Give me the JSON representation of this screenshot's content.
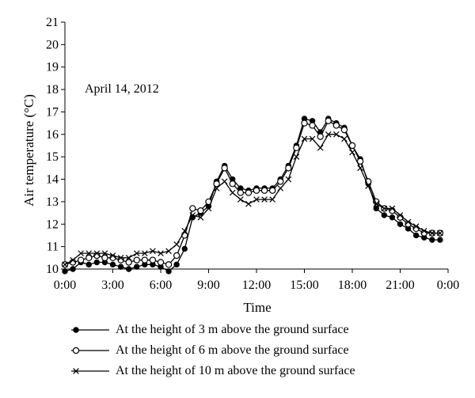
{
  "chart_data": {
    "type": "line",
    "annotation": "April 14, 2012",
    "xlabel": "Time",
    "ylabel": "Air temperature (°C)",
    "x_ticks": [
      "0:00",
      "3:00",
      "6:00",
      "9:00",
      "12:00",
      "15:00",
      "18:00",
      "21:00",
      "0:00"
    ],
    "y_ticks": [
      10,
      11,
      12,
      13,
      14,
      15,
      16,
      17,
      18,
      19,
      20,
      21
    ],
    "xlim_hours": [
      0,
      24
    ],
    "ylim": [
      10,
      21
    ],
    "grid": false,
    "legend_position": "bottom",
    "x_hours": [
      0,
      0.5,
      1,
      1.5,
      2,
      2.5,
      3,
      3.5,
      4,
      4.5,
      5,
      5.5,
      6,
      6.5,
      7,
      7.5,
      8,
      8.5,
      9,
      9.5,
      10,
      10.5,
      11,
      11.5,
      12,
      12.5,
      13,
      13.5,
      14,
      14.5,
      15,
      15.5,
      16,
      16.5,
      17,
      17.5,
      18,
      18.5,
      19,
      19.5,
      20,
      20.5,
      21,
      21.5,
      22,
      22.5,
      23,
      23.5
    ],
    "series": [
      {
        "name": "At the height of 3 m above the ground surface",
        "marker": "filled-circle",
        "values": [
          9.9,
          10.0,
          10.3,
          10.2,
          10.3,
          10.3,
          10.2,
          10.1,
          10.0,
          10.1,
          10.2,
          10.2,
          10.1,
          9.9,
          10.2,
          10.9,
          12.3,
          12.5,
          12.8,
          13.9,
          14.6,
          14.0,
          13.6,
          13.5,
          13.6,
          13.6,
          13.6,
          14.0,
          14.6,
          15.5,
          16.7,
          16.6,
          16.1,
          16.7,
          16.5,
          16.3,
          15.5,
          14.9,
          13.8,
          12.7,
          12.4,
          12.3,
          12.0,
          11.8,
          11.5,
          11.4,
          11.3,
          11.3
        ]
      },
      {
        "name": "At the height of 6 m above the ground surface",
        "marker": "open-circle",
        "values": [
          10.2,
          10.3,
          10.4,
          10.5,
          10.6,
          10.5,
          10.5,
          10.4,
          10.3,
          10.4,
          10.4,
          10.4,
          10.3,
          10.2,
          10.6,
          11.5,
          12.7,
          12.6,
          13.0,
          13.8,
          14.5,
          13.8,
          13.4,
          13.4,
          13.5,
          13.5,
          13.5,
          13.9,
          14.5,
          15.4,
          16.5,
          16.4,
          15.9,
          16.6,
          16.4,
          16.2,
          15.5,
          14.8,
          13.9,
          13.0,
          12.7,
          12.6,
          12.3,
          12.0,
          11.8,
          11.6,
          11.6,
          11.6
        ]
      },
      {
        "name": "At the height of 10 m above the ground surface",
        "marker": "cross",
        "values": [
          10.2,
          10.4,
          10.7,
          10.7,
          10.7,
          10.7,
          10.6,
          10.5,
          10.5,
          10.7,
          10.7,
          10.8,
          10.7,
          10.8,
          11.1,
          11.7,
          12.4,
          12.3,
          12.7,
          13.6,
          13.9,
          13.4,
          13.1,
          12.9,
          13.1,
          13.1,
          13.1,
          13.6,
          14.0,
          15.0,
          15.8,
          15.8,
          15.4,
          16.0,
          16.0,
          15.8,
          15.2,
          14.5,
          13.7,
          12.9,
          12.7,
          12.7,
          12.4,
          12.1,
          11.9,
          11.7,
          11.6,
          11.6
        ]
      }
    ]
  }
}
